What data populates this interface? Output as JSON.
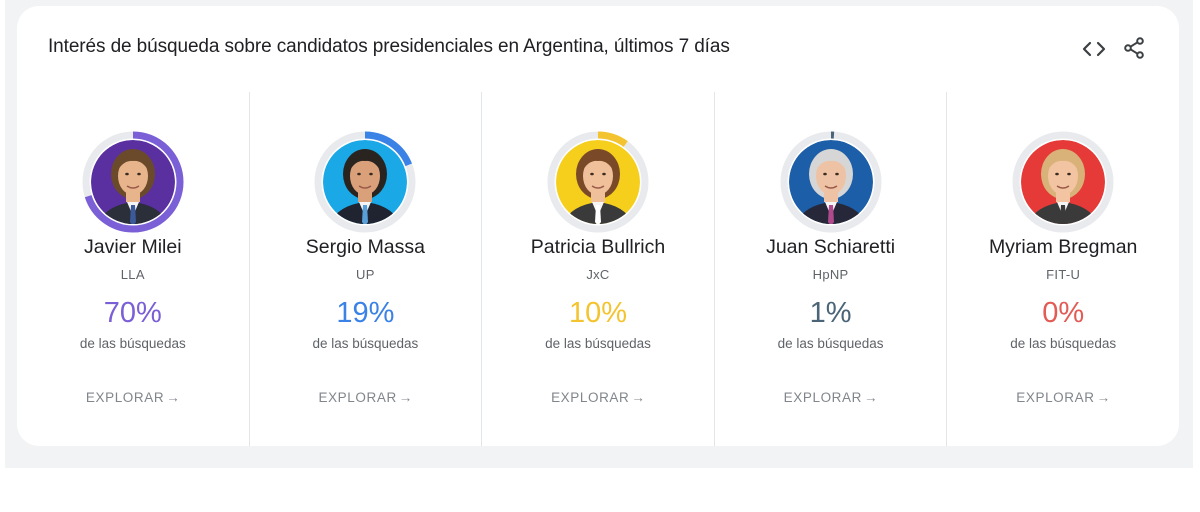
{
  "title": "Interés de búsqueda sobre candidatos presidenciales en Argentina, últimos 7 días",
  "icons": {
    "embed": "code-embed-icon",
    "share": "share-icon"
  },
  "candidates": [
    {
      "name": "Javier Milei",
      "party": "LLA",
      "percent": "70%",
      "share": 0.7,
      "caption": "de las búsquedas",
      "explore": "EXPLORAR",
      "color": "#7a5fd6",
      "bg": "#5a2fa0",
      "skin": "#e8b48c",
      "hair": "#6b4a2b",
      "suit": "#2b2f3a",
      "tie": "#3a5a9a"
    },
    {
      "name": "Sergio Massa",
      "party": "UP",
      "percent": "19%",
      "share": 0.19,
      "caption": "de las búsquedas",
      "explore": "EXPLORAR",
      "color": "#3b82e6",
      "bg": "#1aa8e6",
      "skin": "#d9a07a",
      "hair": "#2a2420",
      "suit": "#1f2430",
      "tie": "#5aa0d8"
    },
    {
      "name": "Patricia Bullrich",
      "party": "JxC",
      "percent": "10%",
      "share": 0.1,
      "caption": "de las búsquedas",
      "explore": "EXPLORAR",
      "color": "#f4c430",
      "bg": "#f5cf1c",
      "skin": "#f0c09a",
      "hair": "#7a4a28",
      "suit": "#3a3a3a",
      "tie": "#ffffff"
    },
    {
      "name": "Juan Schiaretti",
      "party": "HpNP",
      "percent": "1%",
      "share": 0.01,
      "caption": "de las búsquedas",
      "explore": "EXPLORAR",
      "color": "#4a6478",
      "bg": "#1d5ea8",
      "skin": "#eec2a4",
      "hair": "#d6d6d6",
      "suit": "#26283a",
      "tie": "#b14a8c"
    },
    {
      "name": "Myriam Bregman",
      "party": "FIT-U",
      "percent": "0%",
      "share": 0.0,
      "caption": "de las búsquedas",
      "explore": "EXPLORAR",
      "color": "#e25b55",
      "bg": "#e53a38",
      "skin": "#f2c4a2",
      "hair": "#d9b27a",
      "suit": "#3a3a3a",
      "tie": "#3a3a3a"
    }
  ]
}
